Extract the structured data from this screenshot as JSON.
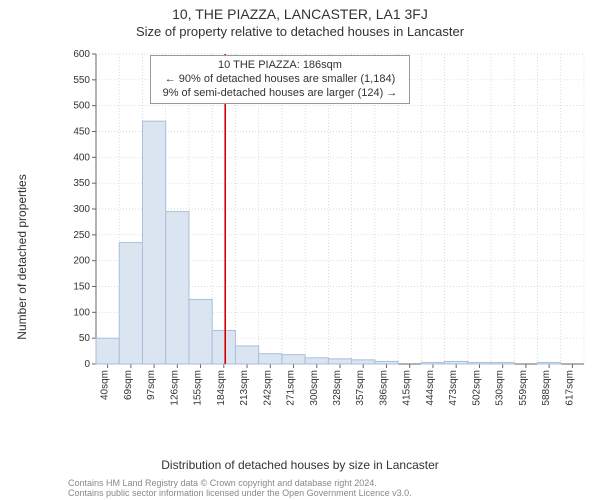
{
  "title": "10, THE PIAZZA, LANCASTER, LA1 3FJ",
  "subtitle": "Size of property relative to detached houses in Lancaster",
  "ylabel": "Number of detached properties",
  "xlabel": "Distribution of detached houses by size in Lancaster",
  "footnote_line1": "Contains HM Land Registry data © Crown copyright and database right 2024.",
  "footnote_line2": "Contains public sector information licensed under the Open Government Licence v3.0.",
  "callout": {
    "headline": "10 THE PIAZZA: 186sqm",
    "line1": "← 90% of detached houses are smaller (1,184)",
    "line2": "9% of semi-detached houses are larger (124) →"
  },
  "chart": {
    "type": "histogram",
    "background_color": "#ffffff",
    "grid_color": "#cccccc",
    "grid_dash": "1,2",
    "yaxis": {
      "min": 0,
      "max": 600,
      "step": 50,
      "tick_labels": [
        "0",
        "50",
        "100",
        "150",
        "200",
        "250",
        "300",
        "350",
        "400",
        "450",
        "500",
        "550",
        "600"
      ]
    },
    "xaxis": {
      "categories": [
        "40sqm",
        "69sqm",
        "97sqm",
        "126sqm",
        "155sqm",
        "184sqm",
        "213sqm",
        "242sqm",
        "271sqm",
        "300sqm",
        "328sqm",
        "357sqm",
        "386sqm",
        "415sqm",
        "444sqm",
        "473sqm",
        "502sqm",
        "530sqm",
        "559sqm",
        "588sqm",
        "617sqm"
      ],
      "label_fontsize": 10,
      "label_rotation": -90
    },
    "bars": {
      "values": [
        50,
        235,
        470,
        295,
        125,
        65,
        35,
        20,
        18,
        12,
        10,
        8,
        5,
        0,
        3,
        5,
        3,
        3,
        0,
        3,
        0
      ],
      "fill": "#dbe5f1",
      "stroke": "#a9bfdc",
      "stroke_width": 1,
      "width_ratio": 1.0
    },
    "marker_line": {
      "x_value": 186,
      "color": "#d40000",
      "width": 1.6
    }
  }
}
